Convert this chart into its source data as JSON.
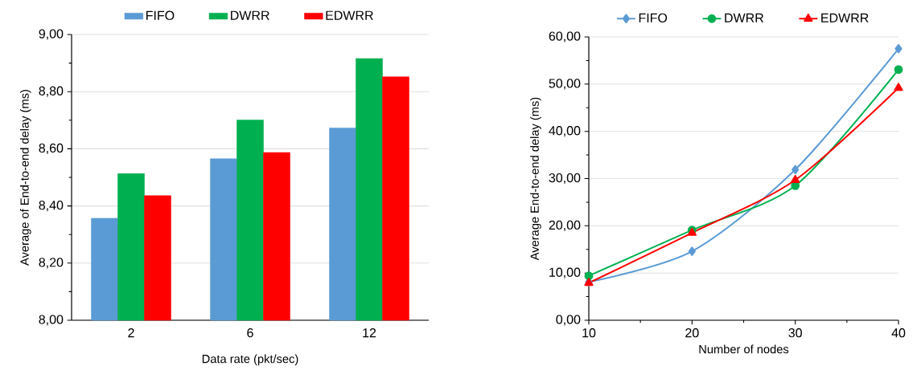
{
  "chart_data": [
    {
      "type": "bar",
      "xlabel": "Data rate (pkt/sec)",
      "ylabel": "Average of End-to-end delay (ms)",
      "categories": [
        "2",
        "6",
        "12"
      ],
      "series": [
        {
          "name": "FIFO",
          "color": "#5b9bd5",
          "values": [
            8.357,
            8.565,
            8.673
          ]
        },
        {
          "name": "DWRR",
          "color": "#00b050",
          "values": [
            8.513,
            8.701,
            8.916
          ]
        },
        {
          "name": "EDWRR",
          "color": "#ff0000",
          "values": [
            8.436,
            8.587,
            8.852
          ]
        }
      ],
      "ylim": [
        8.0,
        9.0
      ],
      "yticks": [
        {
          "value": 8.0,
          "label": "8,00"
        },
        {
          "value": 8.2,
          "label": "8,20"
        },
        {
          "value": 8.4,
          "label": "8,40"
        },
        {
          "value": 8.6,
          "label": "8,60"
        },
        {
          "value": 8.8,
          "label": "8,80"
        },
        {
          "value": 9.0,
          "label": "9,00"
        }
      ],
      "grid": "y",
      "legend": "top"
    },
    {
      "type": "line",
      "xlabel": "Number of nodes",
      "ylabel": "Average End-to-end delay (ms)",
      "x": [
        10,
        20,
        30,
        40
      ],
      "series": [
        {
          "name": "FIFO",
          "color": "#5b9bd5",
          "marker": "diamond",
          "values": [
            8.1,
            14.6,
            31.9,
            57.5
          ]
        },
        {
          "name": "DWRR",
          "color": "#00b050",
          "marker": "circle",
          "values": [
            9.4,
            19.1,
            28.5,
            53.1
          ]
        },
        {
          "name": "EDWRR",
          "color": "#ff0000",
          "marker": "triangle",
          "values": [
            7.9,
            18.5,
            29.7,
            49.2
          ]
        }
      ],
      "xlim": [
        10,
        40
      ],
      "xticks": [
        10,
        20,
        30,
        40
      ],
      "ylim": [
        0,
        60
      ],
      "yticks": [
        {
          "value": 0,
          "label": "0,00"
        },
        {
          "value": 10,
          "label": "10,00"
        },
        {
          "value": 20,
          "label": "20,00"
        },
        {
          "value": 30,
          "label": "30,00"
        },
        {
          "value": 40,
          "label": "40,00"
        },
        {
          "value": 50,
          "label": "50,00"
        },
        {
          "value": 60,
          "label": "60,00"
        }
      ],
      "grid": "y",
      "legend": "top"
    }
  ]
}
